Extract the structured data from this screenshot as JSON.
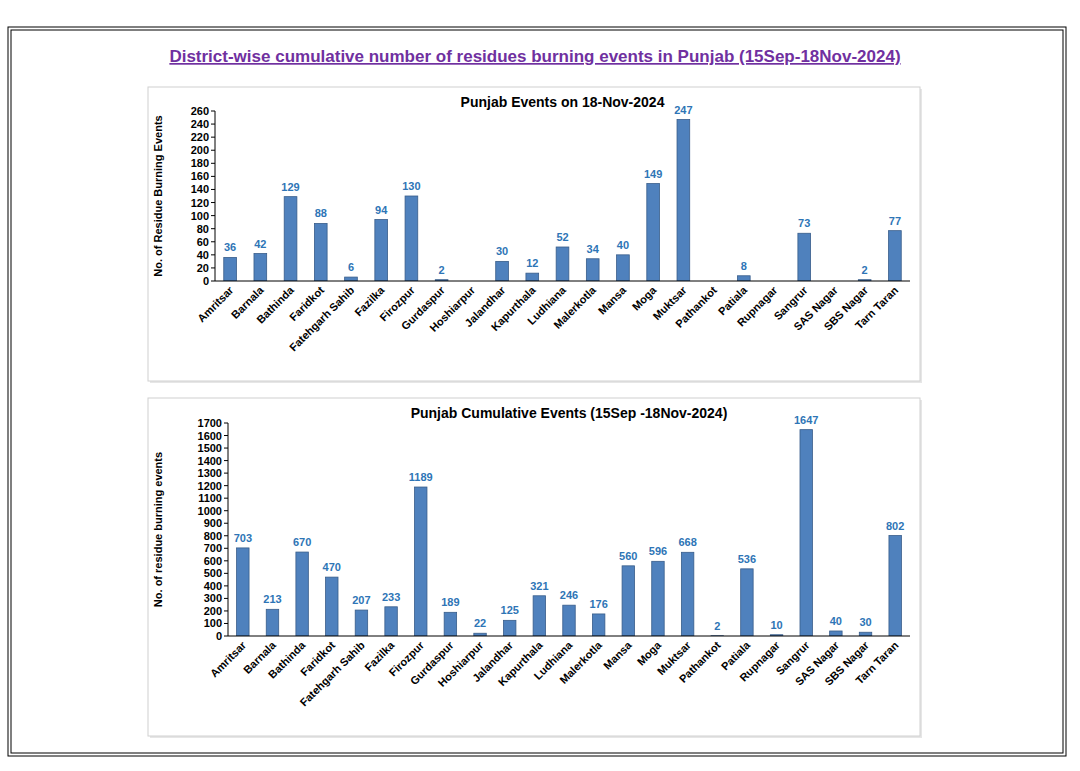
{
  "title": "District-wise cumulative number of residues burning events in Punjab (15Sep-18Nov-2024)",
  "chart_data": [
    {
      "type": "bar",
      "title": "Punjab Events on 18-Nov-2024",
      "y_label": "No. of Residue Burning Events",
      "categories": [
        "Amritsar",
        "Barnala",
        "Bathinda",
        "Faridkot",
        "Fatehgarh Sahib",
        "Fazilka",
        "Firozpur",
        "Gurdaspur",
        "Hoshiarpur",
        "Jalandhar",
        "Kapurthala",
        "Ludhiana",
        "Malerkotla",
        "Mansa",
        "Moga",
        "Muktsar",
        "Pathankot",
        "Patiala",
        "Rupnagar",
        "Sangrur",
        "SAS Nagar",
        "SBS Nagar",
        "Tarn Taran"
      ],
      "values": [
        36,
        42,
        129,
        88,
        6,
        94,
        130,
        2,
        null,
        30,
        12,
        52,
        34,
        40,
        149,
        247,
        null,
        8,
        null,
        73,
        null,
        2,
        77
      ],
      "color": "#4f81bd",
      "ylim": [
        0,
        260
      ],
      "yticks": [
        0,
        20,
        40,
        60,
        80,
        100,
        120,
        140,
        160,
        180,
        200,
        220,
        240,
        260
      ],
      "grid": false,
      "data_labels": true
    },
    {
      "type": "bar",
      "title": "Punjab Cumulative Events (15Sep -18Nov-2024)",
      "y_label": "No. of residue burning events",
      "categories": [
        "Amritsar",
        "Barnala",
        "Bathinda",
        "Faridkot",
        "Fatehgarh Sahib",
        "Fazilka",
        "Firozpur",
        "Gurdaspur",
        "Hoshiarpur",
        "Jalandhar",
        "Kapurthala",
        "Ludhiana",
        "Malerkotla",
        "Mansa",
        "Moga",
        "Muktsar",
        "Pathankot",
        "Patiala",
        "Rupnagar",
        "Sangrur",
        "SAS Nagar",
        "SBS Nagar",
        "Tarn Taran"
      ],
      "values": [
        703,
        213,
        670,
        470,
        207,
        233,
        1189,
        189,
        22,
        125,
        321,
        246,
        176,
        560,
        596,
        668,
        2,
        536,
        10,
        1647,
        40,
        30,
        802
      ],
      "color": "#4f81bd",
      "ylim": [
        0,
        1700
      ],
      "yticks": [
        0,
        100,
        200,
        300,
        400,
        500,
        600,
        700,
        800,
        900,
        1000,
        1100,
        1200,
        1300,
        1400,
        1500,
        1600,
        1700
      ],
      "grid": false,
      "data_labels": true
    }
  ]
}
